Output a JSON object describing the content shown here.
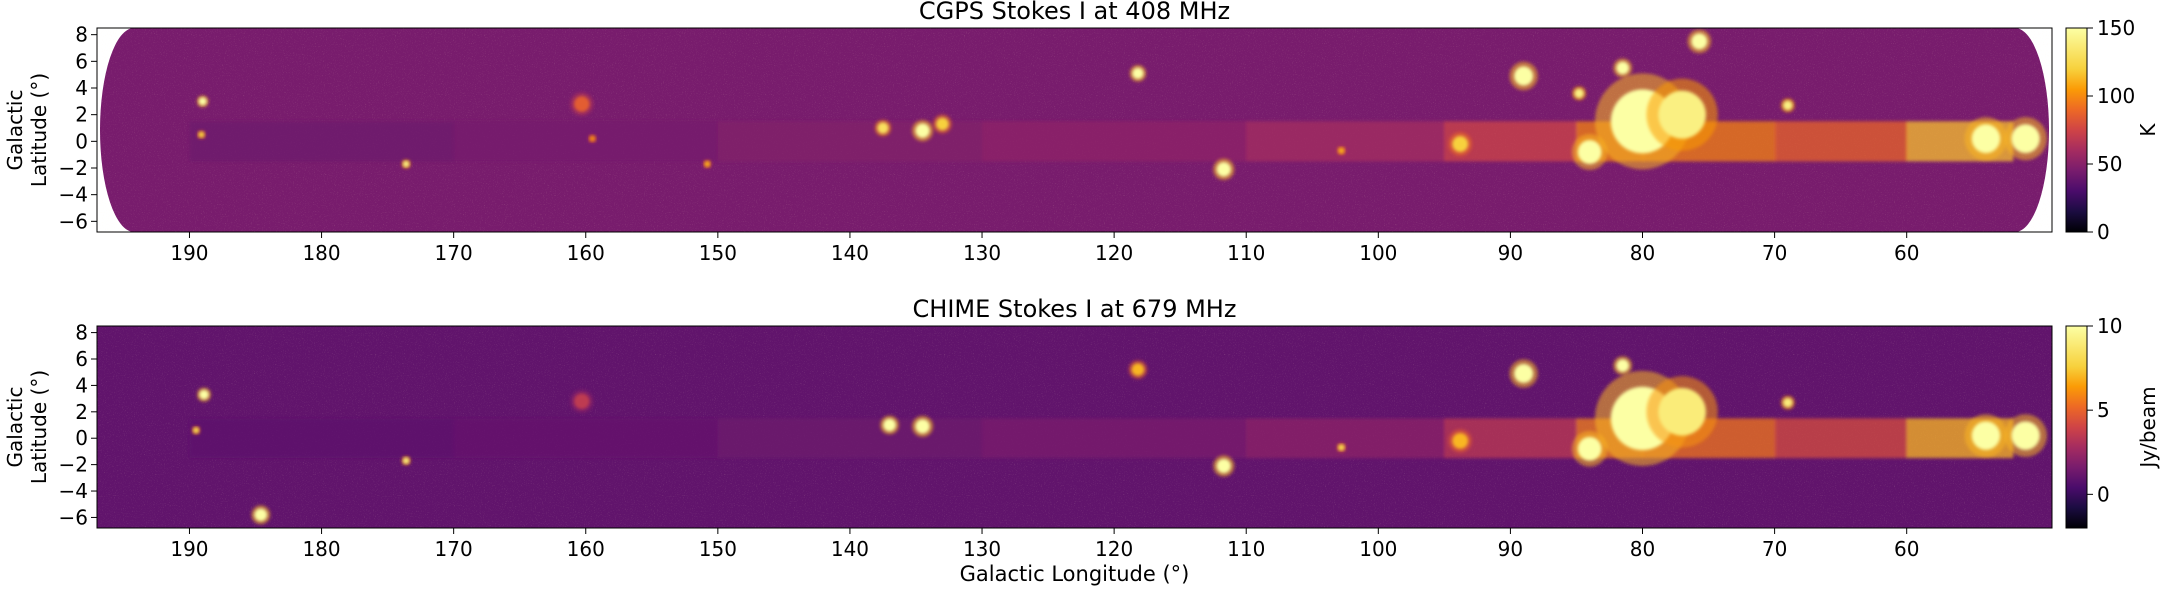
{
  "chart_data": [
    {
      "type": "heatmap",
      "title": "CGPS Stokes I at 408 MHz",
      "xlabel": "",
      "ylabel": "Galactic Latitude (°)",
      "xlim": [
        197,
        49
      ],
      "ylim": [
        -6.8,
        8.5
      ],
      "xticks": [
        190,
        180,
        170,
        160,
        150,
        140,
        130,
        120,
        110,
        100,
        90,
        80,
        70,
        60
      ],
      "yticks": [
        8,
        6,
        4,
        2,
        0,
        -2,
        -4,
        -6
      ],
      "colormap": "inferno",
      "colorbar": {
        "label": "K",
        "range": [
          0,
          150
        ],
        "ticks": [
          0,
          50,
          100,
          150
        ]
      },
      "background_level": 45,
      "plane_emission": [
        {
          "l": 190,
          "level": 40
        },
        {
          "l": 170,
          "level": 42
        },
        {
          "l": 150,
          "level": 46
        },
        {
          "l": 130,
          "level": 50
        },
        {
          "l": 110,
          "level": 55
        },
        {
          "l": 95,
          "level": 65
        },
        {
          "l": 85,
          "level": 85
        },
        {
          "l": 80,
          "level": 110
        },
        {
          "l": 70,
          "level": 85
        },
        {
          "l": 60,
          "level": 90
        },
        {
          "l": 52,
          "level": 140
        }
      ],
      "sources": [
        {
          "l": 189.0,
          "b": 3.0,
          "level": 150,
          "size": 0.5
        },
        {
          "l": 189.1,
          "b": 0.5,
          "level": 120,
          "size": 0.3
        },
        {
          "l": 173.6,
          "b": -1.7,
          "level": 140,
          "size": 0.4
        },
        {
          "l": 160.3,
          "b": 2.8,
          "level": 85,
          "size": 1.0
        },
        {
          "l": 159.5,
          "b": 0.2,
          "level": 100,
          "size": 0.3
        },
        {
          "l": 150.8,
          "b": -1.7,
          "level": 110,
          "size": 0.3
        },
        {
          "l": 137.5,
          "b": 1.0,
          "level": 130,
          "size": 0.7
        },
        {
          "l": 134.5,
          "b": 0.8,
          "level": 150,
          "size": 0.9
        },
        {
          "l": 133.0,
          "b": 1.3,
          "level": 120,
          "size": 0.8
        },
        {
          "l": 118.2,
          "b": 5.1,
          "level": 150,
          "size": 0.7
        },
        {
          "l": 111.7,
          "b": -2.1,
          "level": 150,
          "size": 0.9
        },
        {
          "l": 102.8,
          "b": -0.7,
          "level": 110,
          "size": 0.4
        },
        {
          "l": 93.8,
          "b": -0.2,
          "level": 120,
          "size": 1.0
        },
        {
          "l": 89.0,
          "b": 4.9,
          "level": 150,
          "size": 1.2
        },
        {
          "l": 84.8,
          "b": 3.6,
          "level": 140,
          "size": 0.6
        },
        {
          "l": 81.5,
          "b": 5.5,
          "level": 150,
          "size": 0.8
        },
        {
          "l": 80.0,
          "b": 1.5,
          "level": 150,
          "size": 4.0
        },
        {
          "l": 77.0,
          "b": 2.0,
          "level": 140,
          "size": 3.0
        },
        {
          "l": 84.0,
          "b": -0.8,
          "level": 150,
          "size": 1.5
        },
        {
          "l": 75.7,
          "b": 7.5,
          "level": 150,
          "size": 1.0
        },
        {
          "l": 69.0,
          "b": 2.7,
          "level": 140,
          "size": 0.6
        },
        {
          "l": 54.0,
          "b": 0.2,
          "level": 150,
          "size": 1.8
        },
        {
          "l": 51.0,
          "b": 0.2,
          "level": 150,
          "size": 1.8
        }
      ]
    },
    {
      "type": "heatmap",
      "title": "CHIME Stokes I at 679 MHz",
      "xlabel": "Galactic Longitude (°)",
      "ylabel": "Galactic Latitude (°)",
      "xlim": [
        197,
        49
      ],
      "ylim": [
        -6.8,
        8.5
      ],
      "xticks": [
        190,
        180,
        170,
        160,
        150,
        140,
        130,
        120,
        110,
        100,
        90,
        80,
        70,
        60
      ],
      "yticks": [
        8,
        6,
        4,
        2,
        0,
        -2,
        -4,
        -6
      ],
      "colormap": "inferno",
      "colorbar": {
        "label": "Jy/beam",
        "range": [
          -2,
          10
        ],
        "ticks": [
          0,
          5,
          10
        ]
      },
      "background_level": 1.0,
      "plane_emission": [
        {
          "l": 190,
          "level": 0.8
        },
        {
          "l": 170,
          "level": 1.0
        },
        {
          "l": 150,
          "level": 1.2
        },
        {
          "l": 130,
          "level": 1.5
        },
        {
          "l": 110,
          "level": 1.8
        },
        {
          "l": 95,
          "level": 2.5
        },
        {
          "l": 85,
          "level": 4.5
        },
        {
          "l": 80,
          "level": 7.0
        },
        {
          "l": 70,
          "level": 4.0
        },
        {
          "l": 60,
          "level": 4.5
        },
        {
          "l": 52,
          "level": 9.5
        }
      ],
      "sources": [
        {
          "l": 188.9,
          "b": 3.3,
          "level": 10,
          "size": 0.6
        },
        {
          "l": 184.6,
          "b": -5.8,
          "level": 10,
          "size": 0.8
        },
        {
          "l": 189.5,
          "b": 0.6,
          "level": 8,
          "size": 0.3
        },
        {
          "l": 173.6,
          "b": -1.7,
          "level": 9,
          "size": 0.4
        },
        {
          "l": 160.3,
          "b": 2.8,
          "level": 3.5,
          "size": 1.0
        },
        {
          "l": 137.0,
          "b": 1.0,
          "level": 10,
          "size": 0.8
        },
        {
          "l": 134.5,
          "b": 0.9,
          "level": 10,
          "size": 0.9
        },
        {
          "l": 118.2,
          "b": 5.2,
          "level": 7,
          "size": 0.8
        },
        {
          "l": 111.7,
          "b": -2.1,
          "level": 10,
          "size": 0.9
        },
        {
          "l": 102.8,
          "b": -0.7,
          "level": 8,
          "size": 0.4
        },
        {
          "l": 93.8,
          "b": -0.2,
          "level": 7,
          "size": 1.0
        },
        {
          "l": 89.0,
          "b": 4.9,
          "level": 10,
          "size": 1.2
        },
        {
          "l": 81.5,
          "b": 5.5,
          "level": 10,
          "size": 0.8
        },
        {
          "l": 80.0,
          "b": 1.5,
          "level": 10,
          "size": 4.0
        },
        {
          "l": 77.0,
          "b": 2.0,
          "level": 9,
          "size": 3.0
        },
        {
          "l": 84.0,
          "b": -0.8,
          "level": 10,
          "size": 1.5
        },
        {
          "l": 69.0,
          "b": 2.7,
          "level": 9,
          "size": 0.6
        },
        {
          "l": 54.0,
          "b": 0.2,
          "level": 10,
          "size": 1.8
        },
        {
          "l": 51.0,
          "b": 0.2,
          "level": 10,
          "size": 1.8
        }
      ]
    }
  ]
}
